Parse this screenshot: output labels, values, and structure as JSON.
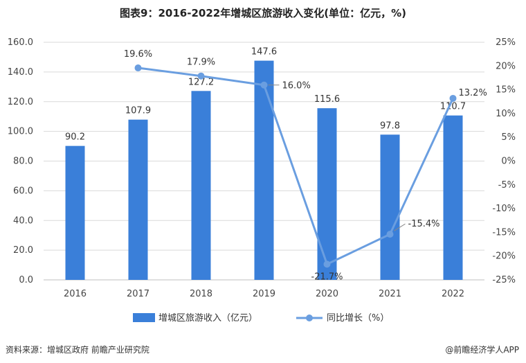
{
  "title": "图表9：2016-2022年增城区旅游收入变化(单位：亿元，%)",
  "source": "资料来源：增城区政府 前瞻产业研究院",
  "brand": "@前瞻经济学人APP",
  "legend": {
    "bar_label": "增城区旅游收入（亿元）",
    "line_label": "同比增长（%）"
  },
  "colors": {
    "bar": "#3a7fd9",
    "line": "#6a9ee0",
    "grid": "#d9d9d9"
  },
  "chart_data": {
    "type": "bar",
    "categories": [
      "2016",
      "2017",
      "2018",
      "2019",
      "2020",
      "2021",
      "2022"
    ],
    "series": [
      {
        "name": "增城区旅游收入（亿元）",
        "type": "bar",
        "axis": "left",
        "values": [
          90.2,
          107.9,
          127.2,
          147.6,
          115.6,
          97.8,
          110.7
        ],
        "labels": [
          "90.2",
          "107.9",
          "127.2",
          "147.6",
          "115.6",
          "97.8",
          "110.7"
        ]
      },
      {
        "name": "同比增长（%）",
        "type": "line",
        "axis": "right",
        "values": [
          null,
          19.6,
          17.9,
          16.0,
          -21.7,
          -15.4,
          13.2
        ],
        "labels": [
          "",
          "19.6%",
          "17.9%",
          "16.0%",
          "-21.7%",
          "-15.4%",
          "13.2%"
        ]
      }
    ],
    "y_left": {
      "ylim": [
        0,
        160
      ],
      "ticks": [
        "0.0",
        "20.0",
        "40.0",
        "60.0",
        "80.0",
        "100.0",
        "120.0",
        "140.0",
        "160.0"
      ]
    },
    "y_right": {
      "ylim": [
        -25,
        25
      ],
      "ticks": [
        "-25%",
        "-20%",
        "-15%",
        "-10%",
        "-5%",
        "0%",
        "5%",
        "10%",
        "15%",
        "20%",
        "25%"
      ]
    },
    "grid": "horizontal",
    "legend_position": "bottom"
  }
}
